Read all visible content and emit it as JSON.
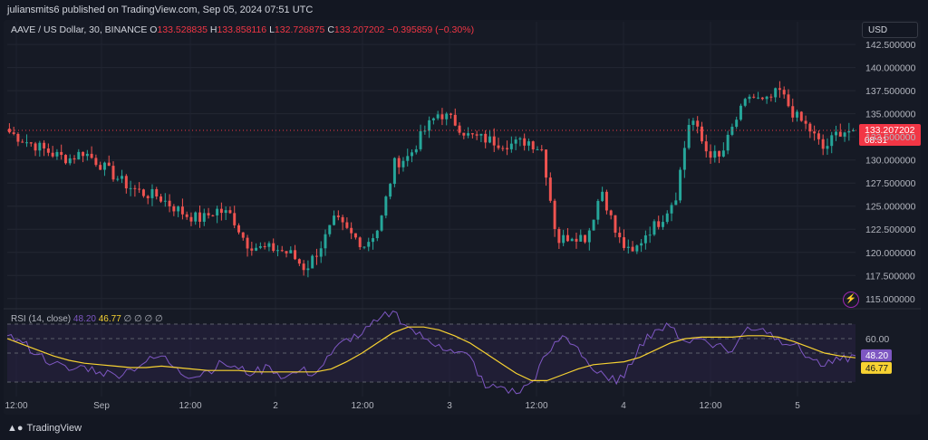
{
  "header": {
    "publish_line": "juliansmits6 published on TradingView.com, Sep 05, 2024 07:51 UTC"
  },
  "legend": {
    "symbol": "AAVE / US Dollar, 30, BINANCE",
    "open_label": "O",
    "open": "133.528835",
    "high_label": "H",
    "high": "133.858116",
    "low_label": "L",
    "low": "132.726875",
    "close_label": "C",
    "close": "133.207202",
    "change": "−0.395859 (−0.30%)"
  },
  "currency_button": "USD",
  "price_badge": {
    "price": "133.207202",
    "countdown": "08:31"
  },
  "rsi": {
    "title": "RSI (14, close)",
    "rsi_value": "48.20",
    "ma_value": "46.77",
    "extra": "∅ ∅ ∅ ∅",
    "level_label": "60.00"
  },
  "footer": {
    "brand": "TradingView"
  },
  "colors": {
    "up": "#26a69a",
    "down": "#ef5350",
    "rsi_line": "#7e57c2",
    "rsi_ma": "#f7d232",
    "background": "#161a25"
  },
  "icons": {
    "brand_logo": "tradingview-logo-icon",
    "alert": "lightning-icon"
  },
  "chart_data": [
    {
      "type": "candlestick",
      "title": "AAVE / US Dollar, 30, BINANCE",
      "ylim": [
        114,
        143
      ],
      "y_ticks": [
        "115.000000",
        "117.500000",
        "120.000000",
        "122.500000",
        "125.000000",
        "127.500000",
        "130.000000",
        "132.500000",
        "135.000000",
        "137.500000",
        "140.000000",
        "142.500000"
      ],
      "x_ticks": [
        "12:00",
        "Sep",
        "12:00",
        "2",
        "12:00",
        "3",
        "12:00",
        "4",
        "12:00",
        "5"
      ],
      "close_path": [
        133.0,
        132.1,
        131.4,
        130.6,
        130.1,
        130.9,
        129.7,
        128.4,
        127.2,
        126.4,
        126.1,
        125.0,
        124.0,
        123.6,
        124.6,
        124.0,
        121.0,
        120.4,
        120.4,
        119.8,
        118.2,
        120.6,
        123.6,
        122.0,
        120.8,
        122.8,
        129.6,
        130.4,
        133.1,
        135.1,
        134.2,
        132.6,
        132.3,
        131.9,
        131.7,
        132.1,
        131.1,
        121.2,
        121.9,
        121.6,
        126.9,
        121.8,
        119.6,
        122.1,
        123.5,
        126.1,
        134.9,
        131.1,
        130.1,
        134.1,
        137.0,
        136.1,
        137.5,
        134.9,
        133.4,
        131.1,
        133.1,
        133.2
      ]
    },
    {
      "type": "line",
      "title": "RSI (14, close)",
      "ylim": [
        20,
        80
      ],
      "levels": [
        70,
        60,
        50,
        30
      ],
      "series": [
        {
          "name": "RSI",
          "values": [
            62,
            57,
            49,
            43,
            38,
            41,
            37,
            35,
            39,
            44,
            48,
            40,
            33,
            38,
            43,
            39,
            36,
            41,
            33,
            38,
            36,
            49,
            60,
            63,
            72,
            79,
            68,
            60,
            56,
            50,
            48,
            26,
            27,
            22,
            30,
            49,
            62,
            54,
            38,
            31,
            33,
            56,
            66,
            68,
            58,
            60,
            56,
            51,
            68,
            67,
            60,
            56,
            47,
            41,
            45,
            48.2
          ]
        },
        {
          "name": "MA",
          "values": [
            60,
            56,
            52,
            48,
            45,
            43,
            42,
            41,
            40,
            40,
            41,
            40,
            39,
            38,
            38,
            38,
            37,
            37,
            37,
            37,
            37,
            39,
            44,
            50,
            57,
            64,
            68,
            68,
            66,
            62,
            57,
            50,
            43,
            36,
            31,
            31,
            35,
            39,
            42,
            43,
            44,
            47,
            52,
            57,
            60,
            61,
            61,
            61,
            62,
            62,
            61,
            58,
            54,
            50,
            48,
            46.77
          ]
        }
      ]
    }
  ]
}
